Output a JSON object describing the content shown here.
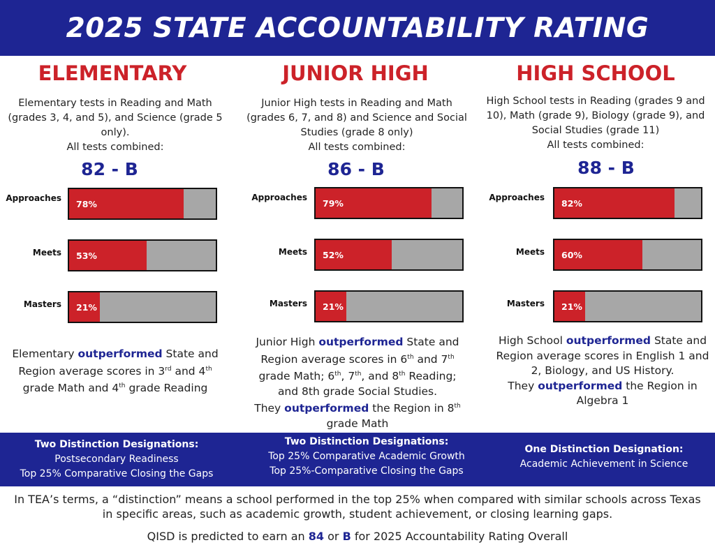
{
  "header": {
    "title": "2025 STATE ACCOUNTABILITY RATING"
  },
  "columns": [
    {
      "heading": "ELEMENTARY",
      "description": "Elementary tests in Reading and Math (grades 3, 4, and 5), and Science (grade 5 only).",
      "combined_label": "All tests combined:",
      "rating": "82 - B",
      "note_parts": [
        "Elementary ",
        "outperformed",
        " State and Region average scores in 3",
        "rd",
        " and 4",
        "th",
        " grade Math and 4",
        "th",
        " grade Reading"
      ]
    },
    {
      "heading": "JUNIOR HIGH",
      "description": "Junior High tests in Reading and Math (grades 6, 7, and 8) and Science and Social Studies (grade 8 only)",
      "combined_label": "All tests combined:",
      "rating": "86 - B",
      "note_parts": [
        "Junior High ",
        "outperformed",
        " State and Region average scores in 6",
        "th",
        " and 7",
        "th",
        " grade Math; 6",
        "th",
        ", 7",
        "th",
        ", and 8",
        "th",
        " Reading; and 8th grade Social Studies.",
        "They ",
        "outperformed",
        " the Region in 8",
        "th",
        " grade Math"
      ]
    },
    {
      "heading": "HIGH SCHOOL",
      "description": "High School tests in Reading (grades 9 and 10), Math (grade 9), Biology (grade 9), and Social Studies (grade 11)",
      "combined_label": "All tests combined:",
      "rating": "88 - B",
      "note_parts": [
        "High School ",
        "outperformed",
        " State and Region average scores in English 1 and 2, Biology, and US History.",
        "They ",
        "outperformed",
        " the Region in Algebra 1"
      ]
    }
  ],
  "chart_data": [
    {
      "type": "bar",
      "title": "ELEMENTARY",
      "categories": [
        "Approaches",
        "Meets",
        "Masters"
      ],
      "values": [
        78,
        53,
        21
      ],
      "value_labels": [
        "78%",
        "53%",
        "21%"
      ],
      "ylim": [
        0,
        100
      ],
      "colors": {
        "filled": "#cc2229",
        "remainder": "#a7a7a7"
      }
    },
    {
      "type": "bar",
      "title": "JUNIOR HIGH",
      "categories": [
        "Approaches",
        "Meets",
        "Masters"
      ],
      "values": [
        79,
        52,
        21
      ],
      "value_labels": [
        "79%",
        "52%",
        "21%"
      ],
      "ylim": [
        0,
        100
      ],
      "colors": {
        "filled": "#cc2229",
        "remainder": "#a7a7a7"
      }
    },
    {
      "type": "bar",
      "title": "HIGH SCHOOL",
      "categories": [
        "Approaches",
        "Meets",
        "Masters"
      ],
      "values": [
        82,
        60,
        21
      ],
      "value_labels": [
        "82%",
        "60%",
        "21%"
      ],
      "ylim": [
        0,
        100
      ],
      "colors": {
        "filled": "#cc2229",
        "remainder": "#a7a7a7"
      }
    }
  ],
  "distinctions": [
    {
      "title": "Two Distinction Designations:",
      "items": [
        "Postsecondary Readiness",
        "Top 25% Comparative Closing the Gaps"
      ]
    },
    {
      "title": "Two Distinction Designations:",
      "items": [
        "Top 25% Comparative Academic Growth",
        "Top 25%-Comparative Closing the Gaps"
      ]
    },
    {
      "title": "One Distinction Designation:",
      "items": [
        "Academic Achievement in Science"
      ]
    }
  ],
  "footer": {
    "definition": "In TEA’s terms, a “distinction” means a school performed in the top 25% when compared with similar schools across Texas in specific areas, such as academic growth, student achievement, or closing learning gaps.",
    "prediction_parts": [
      "QISD is predicted to earn an ",
      "84",
      " or ",
      "B",
      " for 2025 Accountability Rating Overall"
    ]
  },
  "colors": {
    "navy": "#1e2593",
    "red": "#cc2229",
    "gray": "#a7a7a7"
  }
}
